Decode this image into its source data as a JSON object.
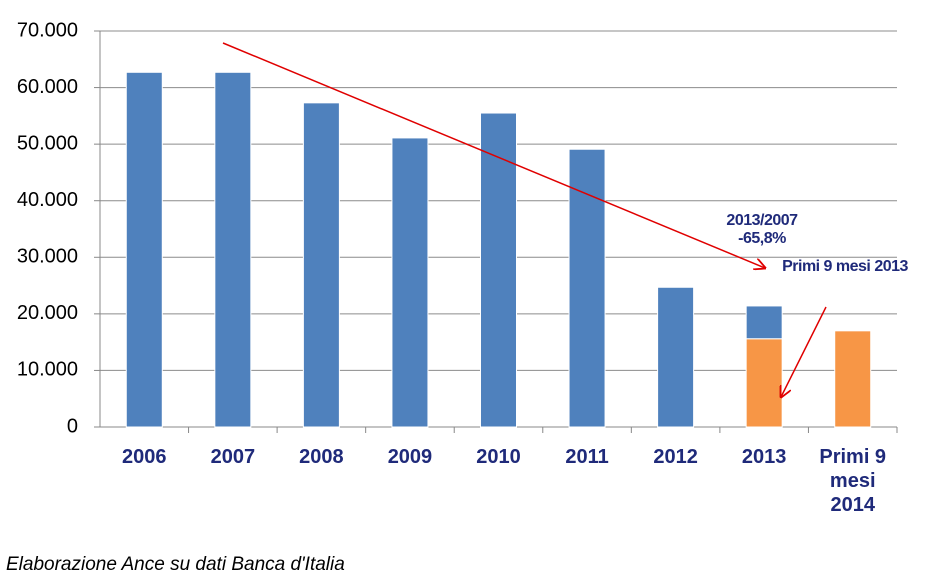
{
  "chart_data": {
    "type": "bar",
    "stacked": true,
    "categories": [
      "2006",
      "2007",
      "2008",
      "2009",
      "2010",
      "2011",
      "2012",
      "2013",
      "Primi 9 mesi 2014"
    ],
    "series": [
      {
        "color": "#f79646",
        "values": [
          null,
          null,
          null,
          null,
          null,
          null,
          null,
          15600,
          17000
        ]
      },
      {
        "color": "#4f81bd",
        "values": [
          62700,
          62700,
          57300,
          51100,
          55500,
          49100,
          24700,
          5800,
          null
        ]
      }
    ],
    "ylim": [
      0,
      70000
    ],
    "yticks": [
      0,
      {
        "value": 10000,
        "label": "10.000"
      },
      {
        "value": 20000,
        "label": "20.000"
      },
      {
        "value": 30000,
        "label": "30.000"
      },
      {
        "value": 40000,
        "label": "40.000"
      },
      {
        "value": 50000,
        "label": "50.000"
      },
      {
        "value": 60000,
        "label": "60.000"
      },
      {
        "value": 70000,
        "label": "70.000"
      }
    ],
    "grid": true,
    "annotations": [
      "2013/2007 -65,8%",
      "Primi 9 mesi 2013"
    ],
    "source": "Elaborazione Ance su dati Banca d'Italia"
  }
}
